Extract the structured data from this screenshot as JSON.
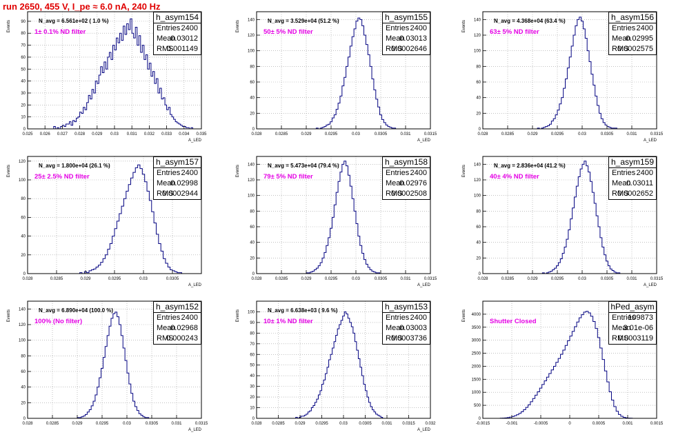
{
  "page": {
    "title": "run 2650,   455 V, I_pe ≈ 6.0 nA, 240 Hz"
  },
  "chart_data": [
    {
      "type": "histogram",
      "name": "h_asym154",
      "navg": "N_avg = 6.561e+02 ( 1.0 %)",
      "filter": "1± 0.1% ND filter",
      "stats": {
        "entries": "2400",
        "mean": "0.03012",
        "rms": "0.001149"
      },
      "ylabel": "Events",
      "xlabel": "A_LED",
      "xlim": [
        0.025,
        0.035
      ],
      "ylim": [
        0,
        98
      ],
      "xticks": [
        0.025,
        0.026,
        0.027,
        0.028,
        0.029,
        0.03,
        0.031,
        0.032,
        0.033,
        0.034,
        0.035
      ],
      "xticklabels": [
        "0.025",
        "0.026",
        "0.027",
        "0.028",
        "0.029",
        "0.03",
        "0.031",
        "0.032",
        "0.033",
        "0.034",
        "0.035"
      ],
      "yticks": [
        0,
        10,
        20,
        30,
        40,
        50,
        60,
        70,
        80,
        90
      ],
      "bins": {
        "lo": 0.0265,
        "width": 0.0001,
        "counts": [
          2,
          0,
          1,
          0,
          2,
          3,
          2,
          4,
          4,
          6,
          3,
          7,
          6,
          9,
          10,
          14,
          13,
          18,
          16,
          22,
          28,
          25,
          33,
          30,
          40,
          38,
          45,
          52,
          47,
          56,
          50,
          60,
          64,
          58,
          70,
          66,
          76,
          72,
          80,
          74,
          86,
          79,
          88,
          83,
          92,
          80,
          76,
          85,
          70,
          78,
          64,
          70,
          58,
          62,
          50,
          55,
          44,
          48,
          38,
          42,
          30,
          34,
          25,
          26,
          20,
          16,
          18,
          12,
          10,
          8,
          6,
          5,
          4,
          3,
          2,
          2,
          1,
          1,
          0,
          1
        ]
      }
    },
    {
      "type": "histogram",
      "name": "h_asym155",
      "navg": "N_avg = 3.529e+04 (51.2 %)",
      "filter": "50± 5% ND filter",
      "stats": {
        "entries": "2400",
        "mean": "0.03013",
        "rms": "0.0002646"
      },
      "ylabel": "Events",
      "xlabel": "A_LED",
      "xlim": [
        0.028,
        0.0315
      ],
      "ylim": [
        0,
        150
      ],
      "xticks": [
        0.028,
        0.0285,
        0.029,
        0.0295,
        0.03,
        0.0305,
        0.031,
        0.0315
      ],
      "xticklabels": [
        "0.028",
        "0.0285",
        "0.029",
        "0.0295",
        "0.03",
        "0.0305",
        "0.031",
        "0.0315"
      ],
      "yticks": [
        0,
        20,
        40,
        60,
        80,
        100,
        120,
        140
      ],
      "bins": {
        "lo": 0.0292,
        "width": 4e-05,
        "counts": [
          1,
          0,
          1,
          2,
          3,
          5,
          6,
          9,
          14,
          18,
          25,
          33,
          42,
          55,
          66,
          80,
          92,
          106,
          118,
          128,
          138,
          142,
          140,
          132,
          120,
          108,
          95,
          80,
          64,
          50,
          38,
          28,
          18,
          12,
          8,
          5,
          3,
          2,
          1,
          1
        ]
      }
    },
    {
      "type": "histogram",
      "name": "h_asym156",
      "navg": "N_avg = 4.368e+04 (63.4 %)",
      "filter": "63± 5% ND filter",
      "stats": {
        "entries": "2400",
        "mean": "0.02995",
        "rms": "0.0002575"
      },
      "ylabel": "Events",
      "xlabel": "A_LED",
      "xlim": [
        0.028,
        0.0315
      ],
      "ylim": [
        0,
        150
      ],
      "xticks": [
        0.028,
        0.0285,
        0.029,
        0.0295,
        0.03,
        0.0305,
        0.031,
        0.0315
      ],
      "xticklabels": [
        "0.028",
        "0.0285",
        "0.029",
        "0.0295",
        "0.03",
        "0.0305",
        "0.031",
        "0.0315"
      ],
      "yticks": [
        0,
        20,
        40,
        60,
        80,
        100,
        120,
        140
      ],
      "bins": {
        "lo": 0.0291,
        "width": 4e-05,
        "counts": [
          1,
          0,
          1,
          2,
          3,
          4,
          6,
          10,
          13,
          18,
          24,
          32,
          40,
          52,
          64,
          78,
          92,
          106,
          120,
          132,
          140,
          143,
          138,
          128,
          116,
          100,
          86,
          70,
          56,
          42,
          30,
          20,
          13,
          8,
          5,
          3,
          2,
          1,
          1,
          1
        ]
      }
    },
    {
      "type": "histogram",
      "name": "h_asym157",
      "navg": "N_avg = 1.800e+04 (26.1 %)",
      "filter": "25± 2.5% ND filter",
      "stats": {
        "entries": "2400",
        "mean": "0.02998",
        "rms": "0.0002944"
      },
      "ylabel": "Events",
      "xlabel": "A_LED",
      "xlim": [
        0.028,
        0.031
      ],
      "ylim": [
        0,
        125
      ],
      "xticks": [
        0.028,
        0.0285,
        0.029,
        0.0295,
        0.03,
        0.0305,
        0.031
      ],
      "xticklabels": [
        "0.028",
        "0.0285",
        "0.029",
        "0.0295",
        "0.03",
        "0.0305",
        ""
      ],
      "yticks": [
        0,
        20,
        40,
        60,
        80,
        100,
        120
      ],
      "bins": {
        "lo": 0.0289,
        "width": 4e-05,
        "counts": [
          1,
          0,
          2,
          1,
          3,
          4,
          5,
          7,
          9,
          12,
          16,
          20,
          26,
          32,
          40,
          48,
          56,
          64,
          72,
          80,
          88,
          95,
          102,
          108,
          113,
          116,
          112,
          106,
          98,
          88,
          78,
          66,
          54,
          42,
          32,
          24,
          16,
          11,
          7,
          4,
          3,
          2,
          1,
          1
        ]
      }
    },
    {
      "type": "histogram",
      "name": "h_asym158",
      "navg": "N_avg = 5.473e+04 (79.4 %)",
      "filter": "79± 5% ND filter",
      "stats": {
        "entries": "2400",
        "mean": "0.02976",
        "rms": "0.0002508"
      },
      "ylabel": "Events",
      "xlabel": "A_LED",
      "xlim": [
        0.028,
        0.0315
      ],
      "ylim": [
        0,
        150
      ],
      "xticks": [
        0.028,
        0.0285,
        0.029,
        0.0295,
        0.03,
        0.0305,
        0.031,
        0.0315
      ],
      "xticklabels": [
        "0.028",
        "0.0285",
        "0.029",
        "0.0295",
        "0.03",
        "0.0305",
        "0.031",
        "0.0315"
      ],
      "yticks": [
        0,
        20,
        40,
        60,
        80,
        100,
        120,
        140
      ],
      "bins": {
        "lo": 0.029,
        "width": 4e-05,
        "counts": [
          1,
          1,
          2,
          3,
          5,
          7,
          10,
          14,
          20,
          27,
          36,
          46,
          58,
          72,
          88,
          104,
          118,
          130,
          140,
          144,
          138,
          126,
          112,
          96,
          80,
          64,
          48,
          36,
          26,
          18,
          12,
          8,
          5,
          3,
          2,
          1,
          1
        ]
      }
    },
    {
      "type": "histogram",
      "name": "h_asym159",
      "navg": "N_avg = 2.836e+04 (41.2 %)",
      "filter": "40± 4% ND filter",
      "stats": {
        "entries": "2400",
        "mean": "0.03011",
        "rms": "0.0002652"
      },
      "ylabel": "Events",
      "xlabel": "A_LED",
      "xlim": [
        0.028,
        0.0315
      ],
      "ylim": [
        0,
        150
      ],
      "xticks": [
        0.028,
        0.0285,
        0.029,
        0.0295,
        0.03,
        0.0305,
        0.031,
        0.0315
      ],
      "xticklabels": [
        "0.028",
        "0.0285",
        "0.029",
        "0.0295",
        "0.03",
        "0.0305",
        "0.031",
        "0.0315"
      ],
      "yticks": [
        0,
        20,
        40,
        60,
        80,
        100,
        120,
        140
      ],
      "bins": {
        "lo": 0.0292,
        "width": 4e-05,
        "counts": [
          1,
          0,
          1,
          2,
          3,
          5,
          7,
          10,
          14,
          19,
          26,
          34,
          44,
          56,
          70,
          84,
          98,
          112,
          124,
          134,
          140,
          144,
          138,
          130,
          118,
          104,
          90,
          74,
          60,
          46,
          34,
          24,
          16,
          10,
          6,
          4,
          2,
          1,
          1
        ]
      }
    },
    {
      "type": "histogram",
      "name": "h_asym152",
      "navg": "N_avg = 6.890e+04 (100.0 %)",
      "filter": "100% (No filter)",
      "stats": {
        "entries": "2400",
        "mean": "0.02968",
        "rms": "0.000243"
      },
      "ylabel": "Events",
      "xlabel": "A_LED",
      "xlim": [
        0.028,
        0.0315
      ],
      "ylim": [
        0,
        150
      ],
      "xticks": [
        0.028,
        0.0285,
        0.029,
        0.0295,
        0.03,
        0.0305,
        0.031,
        0.0315
      ],
      "xticklabels": [
        "0.028",
        "0.0285",
        "0.029",
        "0.0295",
        "0.03",
        "0.0305",
        "0.031",
        "0.0315"
      ],
      "yticks": [
        0,
        20,
        40,
        60,
        80,
        100,
        120,
        140
      ],
      "bins": {
        "lo": 0.029,
        "width": 4e-05,
        "counts": [
          1,
          1,
          2,
          3,
          5,
          8,
          11,
          16,
          22,
          30,
          40,
          52,
          64,
          78,
          92,
          106,
          118,
          128,
          134,
          136,
          130,
          120,
          106,
          90,
          74,
          58,
          44,
          32,
          22,
          15,
          10,
          6,
          4,
          2,
          1,
          1
        ]
      }
    },
    {
      "type": "histogram",
      "name": "h_asym153",
      "navg": "N_avg = 6.638e+03 ( 9.6 %)",
      "filter": "10± 1% ND filter",
      "stats": {
        "entries": "2400",
        "mean": "0.03003",
        "rms": "0.0003736"
      },
      "ylabel": "Events",
      "xlabel": "A_LED",
      "xlim": [
        0.028,
        0.032
      ],
      "ylim": [
        0,
        110
      ],
      "xticks": [
        0.028,
        0.0285,
        0.029,
        0.0295,
        0.03,
        0.0305,
        0.031,
        0.0315,
        0.032
      ],
      "xticklabels": [
        "0.028",
        "0.0285",
        "0.029",
        "0.0295",
        "0.03",
        "0.0305",
        "0.031",
        "0.0315",
        "0.032"
      ],
      "yticks": [
        0,
        10,
        20,
        30,
        40,
        50,
        60,
        70,
        80,
        90,
        100
      ],
      "bins": {
        "lo": 0.0289,
        "width": 4e-05,
        "counts": [
          1,
          0,
          1,
          2,
          2,
          3,
          4,
          6,
          7,
          10,
          12,
          15,
          18,
          22,
          26,
          32,
          36,
          42,
          48,
          55,
          60,
          66,
          72,
          78,
          84,
          88,
          92,
          96,
          100,
          98,
          94,
          90,
          86,
          80,
          72,
          64,
          56,
          48,
          40,
          32,
          26,
          20,
          15,
          11,
          8,
          6,
          4,
          3,
          2,
          1
        ]
      }
    },
    {
      "type": "histogram",
      "name": "hPed_asym",
      "navg": "",
      "filter": "Shutter Closed",
      "stats": {
        "entries": "109873",
        "mean": "3.01e-06",
        "rms": "0.0003119"
      },
      "ylabel": "Events",
      "xlabel": "",
      "xlim": [
        -0.0015,
        0.0015
      ],
      "ylim": [
        0,
        4500
      ],
      "xticks": [
        -0.0015,
        -0.001,
        -0.0005,
        0,
        0.0005,
        0.001,
        0.0015
      ],
      "xticklabels": [
        "-0.0015",
        "-0.001",
        "-0.0005",
        "0",
        "0.0005",
        "0.001",
        "0.0015"
      ],
      "yticks": [
        0,
        500,
        1000,
        1500,
        2000,
        2500,
        3000,
        3500,
        4000
      ],
      "bins": {
        "lo": -0.0012,
        "width": 4e-05,
        "counts": [
          5,
          10,
          18,
          30,
          48,
          70,
          100,
          140,
          190,
          250,
          330,
          420,
          520,
          640,
          760,
          890,
          1020,
          1160,
          1300,
          1440,
          1580,
          1720,
          1860,
          2000,
          2150,
          2300,
          2460,
          2620,
          2800,
          2980,
          3160,
          3340,
          3520,
          3700,
          3860,
          3980,
          4080,
          4110,
          4050,
          3920,
          3720,
          3450,
          3100,
          2700,
          2260,
          1820,
          1400,
          1020,
          700,
          450,
          270,
          150,
          80,
          40,
          20,
          10,
          5
        ]
      }
    }
  ]
}
